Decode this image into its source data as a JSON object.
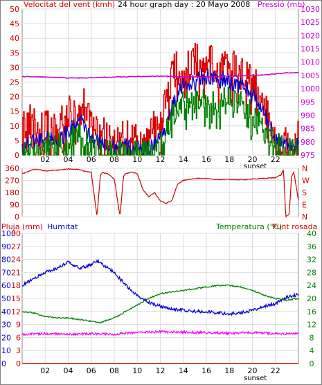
{
  "chart_data": [
    {
      "id": "wind",
      "type": "line",
      "title": "24 hour graph day : 20 Mayo 2008",
      "left_label": "Velocitat del vent (kmh)",
      "right_label": "Pressió (mb)",
      "y_left": {
        "min": 0,
        "max": 50,
        "ticks": [
          0,
          5,
          10,
          15,
          20,
          25,
          30,
          35,
          40,
          45,
          50
        ]
      },
      "y_right": {
        "min": 975,
        "max": 1030,
        "ticks": [
          975,
          980,
          985,
          990,
          995,
          1000,
          1005,
          1010,
          1015,
          1020,
          1025,
          1030
        ]
      },
      "x_hours": {
        "min": 0,
        "max": 24,
        "ticks": [
          "02",
          "04",
          "06",
          "08",
          "10",
          "12",
          "14",
          "16",
          "18",
          "20",
          "22"
        ]
      },
      "annotation": "sunset",
      "series": [
        {
          "key": "gust",
          "color": "#dd0000",
          "axis": "left",
          "anchors": [
            [
              0,
              10
            ],
            [
              0.5,
              12
            ],
            [
              1,
              10
            ],
            [
              1.5,
              8
            ],
            [
              2,
              11
            ],
            [
              2.5,
              7
            ],
            [
              3,
              9
            ],
            [
              3.5,
              12
            ],
            [
              4,
              14
            ],
            [
              4.5,
              17
            ],
            [
              5,
              12
            ],
            [
              5.5,
              19
            ],
            [
              6,
              10
            ],
            [
              6.5,
              8
            ],
            [
              7,
              10
            ],
            [
              7.5,
              7
            ],
            [
              8,
              5
            ],
            [
              8.5,
              6
            ],
            [
              9,
              6
            ],
            [
              9.5,
              6
            ],
            [
              10,
              5
            ],
            [
              10.5,
              3
            ],
            [
              11,
              5
            ],
            [
              11.5,
              10
            ],
            [
              12,
              13
            ],
            [
              12.5,
              18
            ],
            [
              13,
              28
            ],
            [
              13.5,
              30
            ],
            [
              14,
              33
            ],
            [
              14.5,
              30
            ],
            [
              15,
              33
            ],
            [
              15.5,
              33
            ],
            [
              16,
              33
            ],
            [
              16.5,
              32
            ],
            [
              17,
              30
            ],
            [
              17.5,
              32
            ],
            [
              18,
              30
            ],
            [
              18.5,
              31
            ],
            [
              19,
              29
            ],
            [
              19.5,
              28
            ],
            [
              20,
              27
            ],
            [
              20.5,
              21
            ],
            [
              21,
              15
            ],
            [
              21.5,
              13
            ],
            [
              22,
              6
            ],
            [
              22.5,
              5
            ],
            [
              23,
              4
            ],
            [
              23.5,
              5
            ],
            [
              24,
              7
            ]
          ]
        },
        {
          "key": "speed",
          "color": "#0000cc",
          "axis": "left",
          "anchors": [
            [
              0,
              3
            ],
            [
              1,
              5
            ],
            [
              2,
              6
            ],
            [
              3,
              5
            ],
            [
              4,
              8
            ],
            [
              4.5,
              10
            ],
            [
              5,
              12
            ],
            [
              5.5,
              9
            ],
            [
              6,
              5
            ],
            [
              7,
              4
            ],
            [
              8,
              3
            ],
            [
              9,
              3
            ],
            [
              10,
              2
            ],
            [
              11,
              2
            ],
            [
              12,
              6
            ],
            [
              12.5,
              10
            ],
            [
              13,
              16
            ],
            [
              14,
              24
            ],
            [
              14.5,
              25
            ],
            [
              15,
              24
            ],
            [
              15.5,
              27
            ],
            [
              16,
              27
            ],
            [
              17,
              25
            ],
            [
              17.5,
              26
            ],
            [
              18,
              25
            ],
            [
              19,
              24
            ],
            [
              19.5,
              23
            ],
            [
              20,
              20
            ],
            [
              20.5,
              18
            ],
            [
              21,
              14
            ],
            [
              21.5,
              10
            ],
            [
              22,
              6
            ],
            [
              23,
              4
            ],
            [
              24,
              3
            ]
          ]
        },
        {
          "key": "average",
          "color": "#008000",
          "axis": "left",
          "anchors": [
            [
              0,
              2
            ],
            [
              1,
              3
            ],
            [
              2,
              4
            ],
            [
              3,
              3
            ],
            [
              4,
              6
            ],
            [
              5,
              8
            ],
            [
              5.5,
              5
            ],
            [
              6,
              3
            ],
            [
              7,
              2
            ],
            [
              8,
              1
            ],
            [
              9,
              1
            ],
            [
              10,
              1
            ],
            [
              11,
              1
            ],
            [
              12,
              3
            ],
            [
              12.5,
              8
            ],
            [
              13,
              14
            ],
            [
              14,
              18
            ],
            [
              15,
              18
            ],
            [
              15.5,
              20
            ],
            [
              16,
              19
            ],
            [
              17,
              18
            ],
            [
              17.5,
              20
            ],
            [
              18,
              19
            ],
            [
              19,
              18
            ],
            [
              19.5,
              16
            ],
            [
              20,
              14
            ],
            [
              20.5,
              12
            ],
            [
              21,
              8
            ],
            [
              22,
              4
            ],
            [
              23,
              2
            ],
            [
              24,
              2
            ]
          ]
        },
        {
          "key": "pressure",
          "color": "#cc00cc",
          "axis": "right",
          "anchors": [
            [
              0,
              1004.6
            ],
            [
              2,
              1004.4
            ],
            [
              4,
              1004.0
            ],
            [
              6,
              1004.1
            ],
            [
              8,
              1004.4
            ],
            [
              10,
              1004.6
            ],
            [
              12,
              1004.7
            ],
            [
              14,
              1004.5
            ],
            [
              16,
              1004.4
            ],
            [
              18,
              1004.7
            ],
            [
              20,
              1005.0
            ],
            [
              22,
              1005.5
            ],
            [
              23,
              1006.0
            ],
            [
              24,
              1006.0
            ]
          ]
        }
      ]
    },
    {
      "id": "direction",
      "type": "line",
      "y_left": {
        "min": 0,
        "max": 360,
        "ticks": [
          0,
          90,
          180,
          270,
          360
        ]
      },
      "right_letters": [
        "N",
        "W",
        "S",
        "E",
        "N"
      ],
      "color": "#cc0000",
      "anchors": [
        [
          0,
          320
        ],
        [
          1,
          350
        ],
        [
          1.5,
          350
        ],
        [
          2,
          340
        ],
        [
          3,
          345
        ],
        [
          4,
          355
        ],
        [
          5,
          350
        ],
        [
          5.5,
          335
        ],
        [
          6,
          330
        ],
        [
          6.5,
          0
        ],
        [
          6.8,
          310
        ],
        [
          7,
          330
        ],
        [
          7.5,
          315
        ],
        [
          8,
          280
        ],
        [
          8.5,
          0
        ],
        [
          8.8,
          300
        ],
        [
          9,
          320
        ],
        [
          9.5,
          330
        ],
        [
          10,
          320
        ],
        [
          10.5,
          200
        ],
        [
          11,
          150
        ],
        [
          11.5,
          180
        ],
        [
          12,
          120
        ],
        [
          12.5,
          100
        ],
        [
          13,
          120
        ],
        [
          13.5,
          240
        ],
        [
          14,
          270
        ],
        [
          15,
          285
        ],
        [
          16,
          285
        ],
        [
          17,
          275
        ],
        [
          18,
          278
        ],
        [
          19,
          275
        ],
        [
          20,
          280
        ],
        [
          21,
          285
        ],
        [
          22,
          290
        ],
        [
          22.5,
          310
        ],
        [
          22.7,
          355
        ],
        [
          22.9,
          0
        ],
        [
          23.2,
          20
        ],
        [
          23.4,
          300
        ],
        [
          23.6,
          330
        ],
        [
          24,
          120
        ]
      ]
    },
    {
      "id": "temp",
      "type": "line",
      "left_label": "Pluja (mm)",
      "mid_label": "Humitat",
      "right_label": "Temperatura (°C)",
      "right_label2": "Punt rosada",
      "y_hum": {
        "min": 0,
        "max": 100,
        "ticks": [
          0,
          10,
          20,
          30,
          40,
          50,
          60,
          70,
          80,
          90,
          100
        ]
      },
      "y_rain": {
        "min": 0,
        "max": 30,
        "ticks": [
          0,
          3,
          6,
          9,
          12,
          15,
          18,
          21,
          24,
          27,
          30
        ]
      },
      "y_temp": {
        "min": 0,
        "max": 40,
        "ticks": [
          0,
          4,
          8,
          12,
          16,
          20,
          24,
          28,
          32,
          36,
          40
        ]
      },
      "annotation": "sunset",
      "series": [
        {
          "key": "humidity",
          "color": "#0000cc",
          "axis": "hum",
          "anchors": [
            [
              0,
              60
            ],
            [
              1,
              65
            ],
            [
              2,
              70
            ],
            [
              3,
              73
            ],
            [
              4,
              78
            ],
            [
              5,
              73
            ],
            [
              6,
              76
            ],
            [
              6.5,
              79
            ],
            [
              7,
              76
            ],
            [
              8,
              70
            ],
            [
              9,
              60
            ],
            [
              10,
              52
            ],
            [
              11,
              47
            ],
            [
              12,
              44
            ],
            [
              13,
              42
            ],
            [
              14,
              41
            ],
            [
              15,
              40
            ],
            [
              16,
              40
            ],
            [
              17,
              39
            ],
            [
              18,
              38
            ],
            [
              19,
              39
            ],
            [
              20,
              41
            ],
            [
              21,
              44
            ],
            [
              22,
              46
            ],
            [
              23,
              51
            ],
            [
              24,
              53
            ]
          ]
        },
        {
          "key": "temperature",
          "color": "#008000",
          "axis": "temp",
          "anchors": [
            [
              0,
              16
            ],
            [
              1,
              15.5
            ],
            [
              2,
              14.5
            ],
            [
              3,
              14
            ],
            [
              4,
              14
            ],
            [
              5,
              13.5
            ],
            [
              6,
              13
            ],
            [
              6.8,
              12.5
            ],
            [
              7.5,
              13.5
            ],
            [
              8,
              14
            ],
            [
              9,
              16
            ],
            [
              10,
              18
            ],
            [
              11,
              20
            ],
            [
              12,
              21.5
            ],
            [
              13,
              22
            ],
            [
              14,
              22.5
            ],
            [
              15,
              23
            ],
            [
              16,
              23.5
            ],
            [
              17,
              24
            ],
            [
              18,
              24
            ],
            [
              19,
              23.5
            ],
            [
              20,
              22.5
            ],
            [
              21,
              21
            ],
            [
              22,
              20
            ],
            [
              23,
              19.5
            ],
            [
              24,
              20
            ]
          ]
        },
        {
          "key": "dewpoint",
          "color": "#ff00ff",
          "axis": "temp",
          "anchors": [
            [
              0,
              9
            ],
            [
              2,
              9.2
            ],
            [
              4,
              9
            ],
            [
              6,
              9.2
            ],
            [
              8,
              9
            ],
            [
              10,
              9.5
            ],
            [
              12,
              9.8
            ],
            [
              14,
              9.6
            ],
            [
              16,
              9.5
            ],
            [
              18,
              9.3
            ],
            [
              20,
              9.5
            ],
            [
              22,
              9.2
            ],
            [
              24,
              9.2
            ]
          ]
        },
        {
          "key": "rain",
          "color": "#cc0000",
          "axis": "rain",
          "anchors": [
            [
              0,
              0.05
            ],
            [
              24,
              0.05
            ]
          ]
        }
      ]
    }
  ]
}
